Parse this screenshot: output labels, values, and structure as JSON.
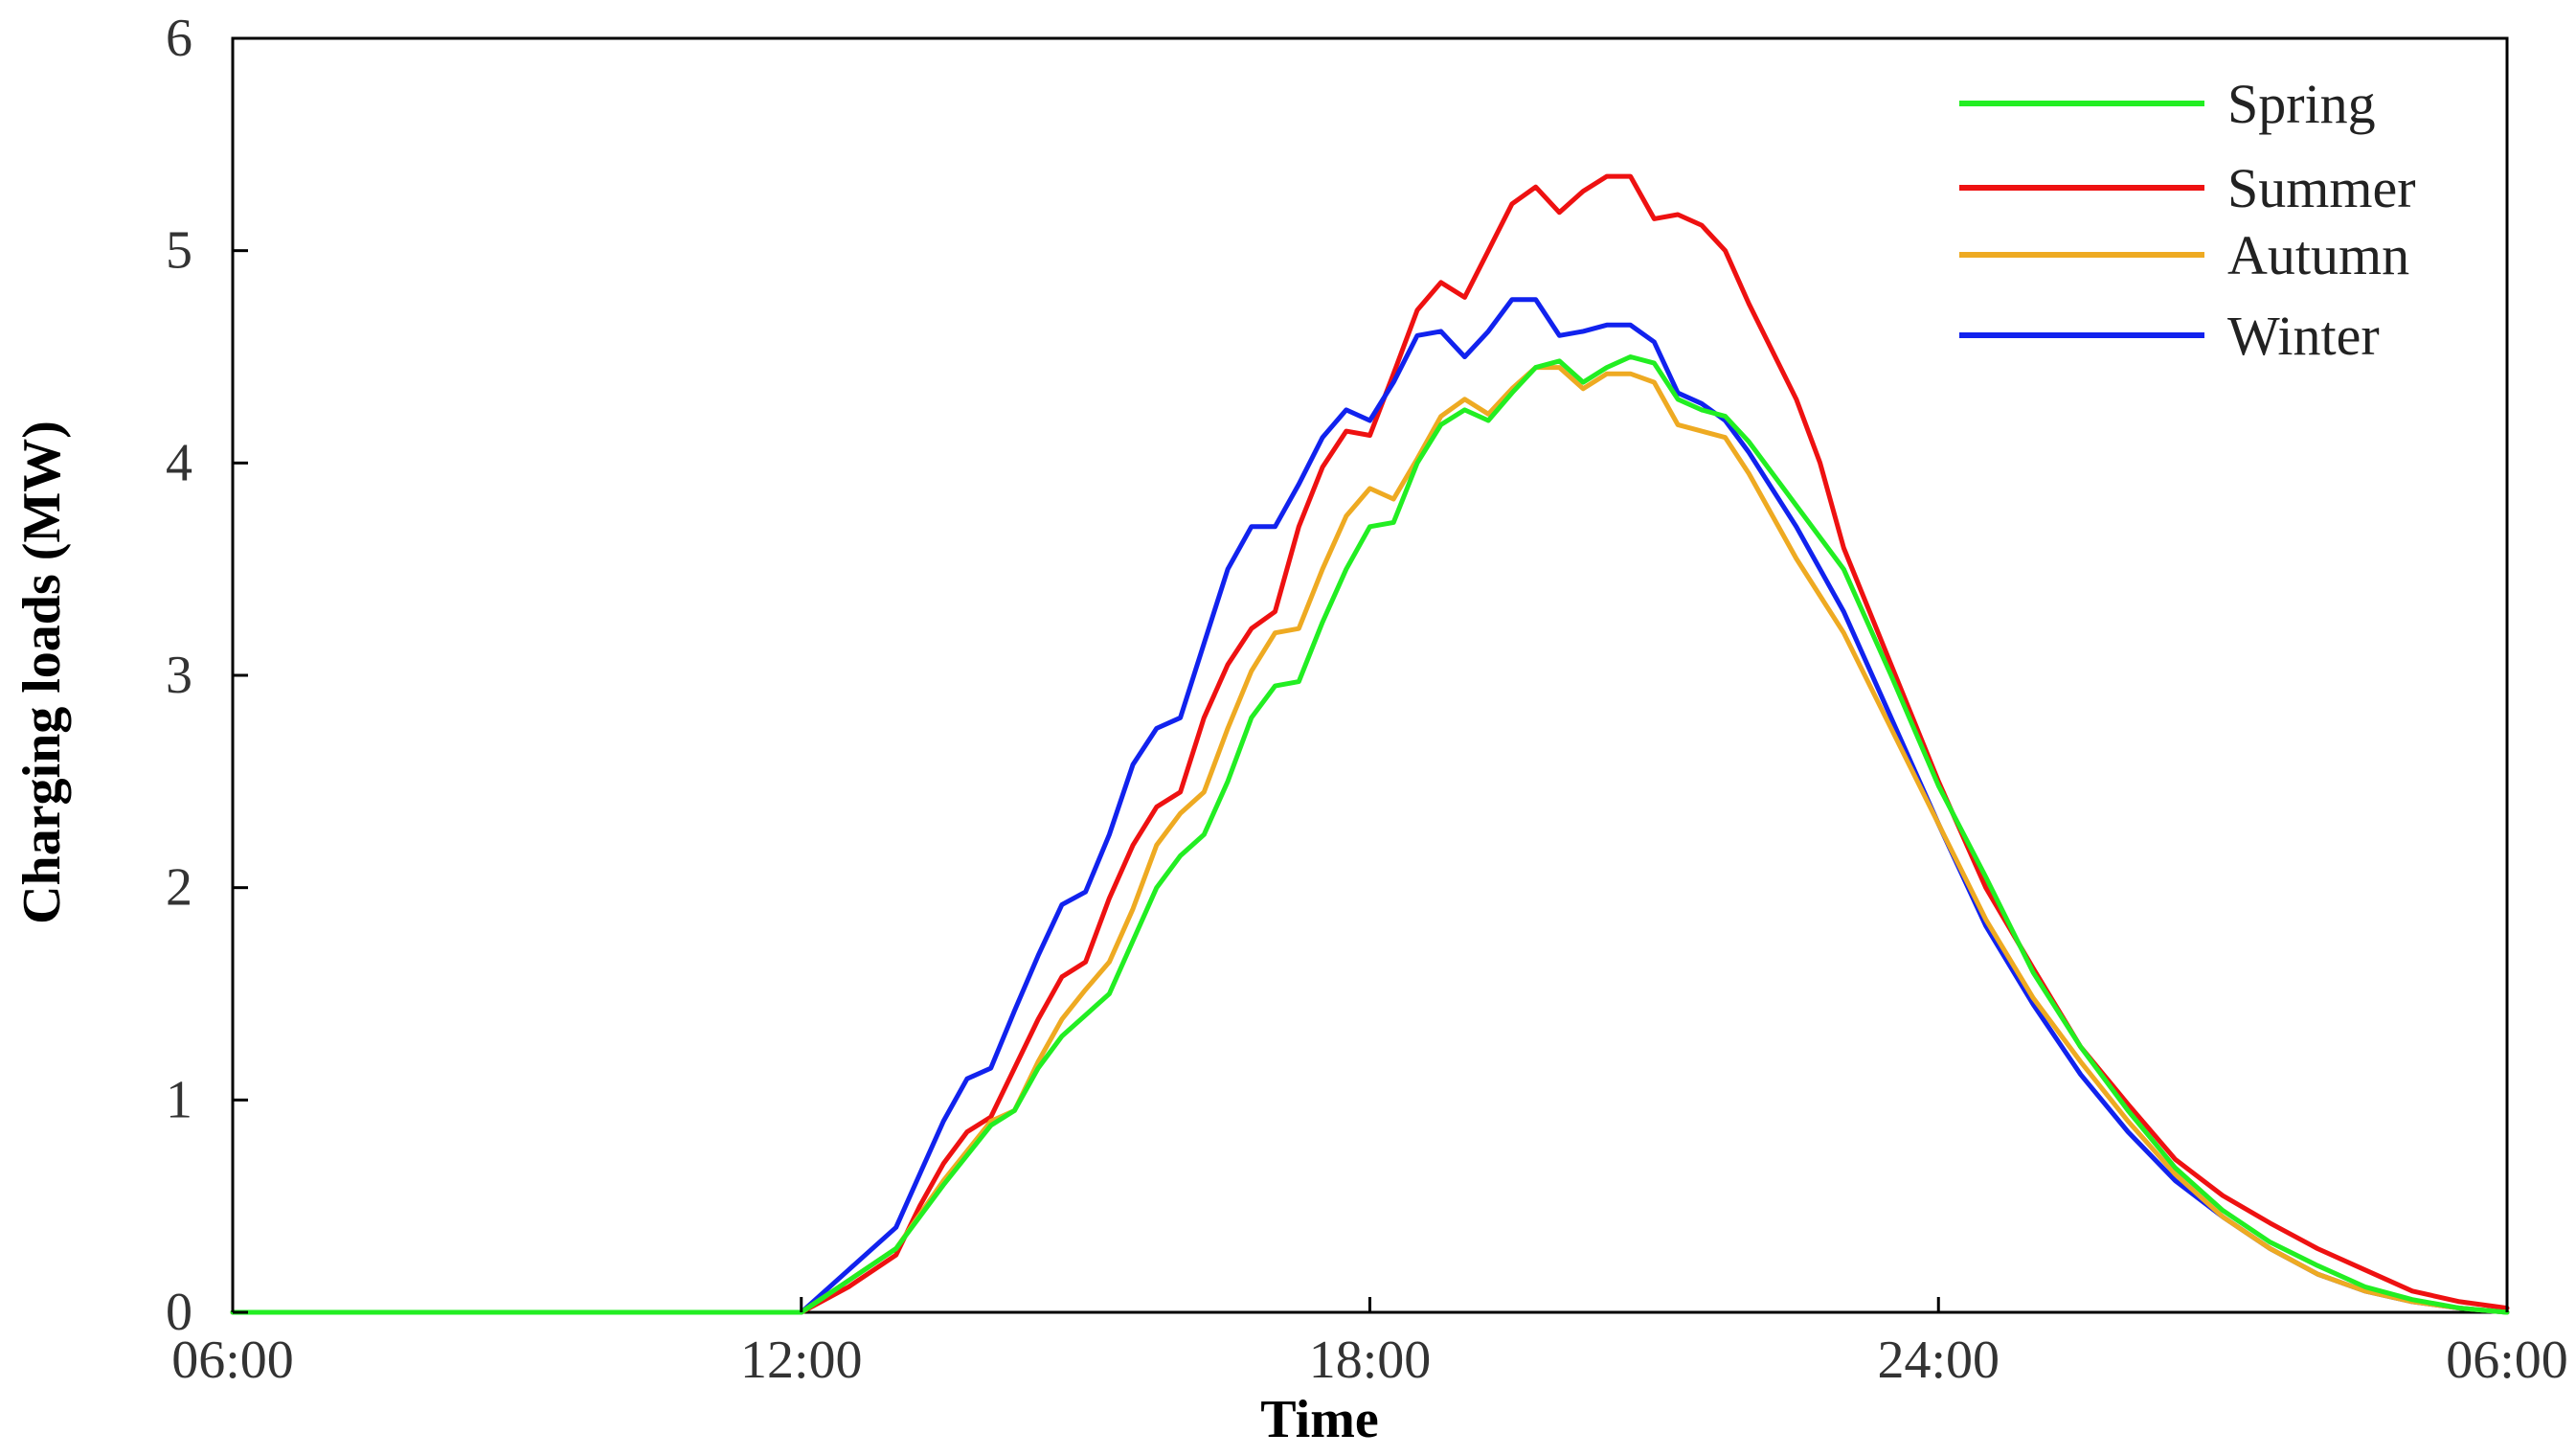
{
  "chart_data": {
    "type": "line",
    "title": "",
    "xlabel": "Time",
    "ylabel": "Charging loads (MW)",
    "xlim": [
      0,
      24
    ],
    "ylim": [
      0,
      6
    ],
    "grid": false,
    "legend_position": "top-right",
    "x_ticks": [
      {
        "value": 0,
        "label": "06:00"
      },
      {
        "value": 6,
        "label": "12:00"
      },
      {
        "value": 12,
        "label": "18:00"
      },
      {
        "value": 18,
        "label": "24:00"
      },
      {
        "value": 24,
        "label": "06:00"
      }
    ],
    "y_ticks": [
      {
        "value": 0,
        "label": "0"
      },
      {
        "value": 1,
        "label": "1"
      },
      {
        "value": 2,
        "label": "2"
      },
      {
        "value": 3,
        "label": "3"
      },
      {
        "value": 4,
        "label": "4"
      },
      {
        "value": 5,
        "label": "5"
      },
      {
        "value": 6,
        "label": "6"
      }
    ],
    "series": [
      {
        "name": "Spring",
        "color": "#22ee22",
        "points": [
          [
            0,
            0
          ],
          [
            6,
            0
          ],
          [
            6.5,
            0.15
          ],
          [
            7,
            0.3
          ],
          [
            7.5,
            0.6
          ],
          [
            8,
            0.88
          ],
          [
            8.25,
            0.95
          ],
          [
            8.5,
            1.15
          ],
          [
            8.75,
            1.3
          ],
          [
            9,
            1.4
          ],
          [
            9.25,
            1.5
          ],
          [
            9.5,
            1.75
          ],
          [
            9.75,
            2.0
          ],
          [
            10,
            2.15
          ],
          [
            10.25,
            2.25
          ],
          [
            10.5,
            2.5
          ],
          [
            10.75,
            2.8
          ],
          [
            11,
            2.95
          ],
          [
            11.25,
            2.97
          ],
          [
            11.5,
            3.25
          ],
          [
            11.75,
            3.5
          ],
          [
            12,
            3.7
          ],
          [
            12.25,
            3.72
          ],
          [
            12.5,
            4.0
          ],
          [
            12.75,
            4.18
          ],
          [
            13,
            4.25
          ],
          [
            13.25,
            4.2
          ],
          [
            13.5,
            4.33
          ],
          [
            13.75,
            4.45
          ],
          [
            14,
            4.48
          ],
          [
            14.25,
            4.38
          ],
          [
            14.5,
            4.45
          ],
          [
            14.75,
            4.5
          ],
          [
            15,
            4.47
          ],
          [
            15.25,
            4.3
          ],
          [
            15.5,
            4.25
          ],
          [
            15.75,
            4.22
          ],
          [
            16,
            4.1
          ],
          [
            16.5,
            3.8
          ],
          [
            17,
            3.5
          ],
          [
            17.5,
            3.0
          ],
          [
            18,
            2.48
          ],
          [
            18.5,
            2.05
          ],
          [
            19,
            1.6
          ],
          [
            19.5,
            1.25
          ],
          [
            20,
            0.95
          ],
          [
            20.5,
            0.68
          ],
          [
            21,
            0.48
          ],
          [
            21.5,
            0.33
          ],
          [
            22,
            0.22
          ],
          [
            22.5,
            0.12
          ],
          [
            23,
            0.06
          ],
          [
            23.5,
            0.02
          ],
          [
            24,
            0
          ]
        ]
      },
      {
        "name": "Summer",
        "color": "#ee1111",
        "points": [
          [
            0,
            0
          ],
          [
            6,
            0
          ],
          [
            6.5,
            0.12
          ],
          [
            7,
            0.27
          ],
          [
            7.25,
            0.5
          ],
          [
            7.5,
            0.7
          ],
          [
            7.75,
            0.85
          ],
          [
            8,
            0.92
          ],
          [
            8.25,
            1.15
          ],
          [
            8.5,
            1.38
          ],
          [
            8.75,
            1.58
          ],
          [
            9,
            1.65
          ],
          [
            9.25,
            1.95
          ],
          [
            9.5,
            2.2
          ],
          [
            9.75,
            2.38
          ],
          [
            10,
            2.45
          ],
          [
            10.25,
            2.8
          ],
          [
            10.5,
            3.05
          ],
          [
            10.75,
            3.22
          ],
          [
            11,
            3.3
          ],
          [
            11.25,
            3.7
          ],
          [
            11.5,
            3.98
          ],
          [
            11.75,
            4.15
          ],
          [
            12,
            4.13
          ],
          [
            12.25,
            4.42
          ],
          [
            12.5,
            4.72
          ],
          [
            12.75,
            4.85
          ],
          [
            13,
            4.78
          ],
          [
            13.25,
            5.0
          ],
          [
            13.5,
            5.22
          ],
          [
            13.75,
            5.3
          ],
          [
            14,
            5.18
          ],
          [
            14.25,
            5.28
          ],
          [
            14.5,
            5.35
          ],
          [
            14.75,
            5.35
          ],
          [
            15,
            5.15
          ],
          [
            15.25,
            5.17
          ],
          [
            15.5,
            5.12
          ],
          [
            15.75,
            5.0
          ],
          [
            16,
            4.75
          ],
          [
            16.5,
            4.3
          ],
          [
            16.75,
            4.0
          ],
          [
            17,
            3.6
          ],
          [
            17.5,
            3.05
          ],
          [
            18,
            2.5
          ],
          [
            18.5,
            2.0
          ],
          [
            19,
            1.62
          ],
          [
            19.5,
            1.25
          ],
          [
            20,
            0.98
          ],
          [
            20.5,
            0.72
          ],
          [
            21,
            0.55
          ],
          [
            21.5,
            0.42
          ],
          [
            22,
            0.3
          ],
          [
            22.5,
            0.2
          ],
          [
            23,
            0.1
          ],
          [
            23.5,
            0.05
          ],
          [
            24,
            0.02
          ]
        ]
      },
      {
        "name": "Autumn",
        "color": "#eeaa22",
        "points": [
          [
            0,
            0
          ],
          [
            6,
            0
          ],
          [
            6.5,
            0.15
          ],
          [
            7,
            0.3
          ],
          [
            7.5,
            0.62
          ],
          [
            8,
            0.9
          ],
          [
            8.25,
            0.95
          ],
          [
            8.5,
            1.18
          ],
          [
            8.75,
            1.38
          ],
          [
            9,
            1.52
          ],
          [
            9.25,
            1.65
          ],
          [
            9.5,
            1.9
          ],
          [
            9.75,
            2.2
          ],
          [
            10,
            2.35
          ],
          [
            10.25,
            2.45
          ],
          [
            10.5,
            2.75
          ],
          [
            10.75,
            3.02
          ],
          [
            11,
            3.2
          ],
          [
            11.25,
            3.22
          ],
          [
            11.5,
            3.5
          ],
          [
            11.75,
            3.75
          ],
          [
            12,
            3.88
          ],
          [
            12.25,
            3.83
          ],
          [
            12.5,
            4.02
          ],
          [
            12.75,
            4.22
          ],
          [
            13,
            4.3
          ],
          [
            13.25,
            4.23
          ],
          [
            13.5,
            4.35
          ],
          [
            13.75,
            4.45
          ],
          [
            14,
            4.45
          ],
          [
            14.25,
            4.35
          ],
          [
            14.5,
            4.42
          ],
          [
            14.75,
            4.42
          ],
          [
            15,
            4.38
          ],
          [
            15.25,
            4.18
          ],
          [
            15.5,
            4.15
          ],
          [
            15.75,
            4.12
          ],
          [
            16,
            3.95
          ],
          [
            16.5,
            3.55
          ],
          [
            17,
            3.2
          ],
          [
            17.5,
            2.75
          ],
          [
            18,
            2.3
          ],
          [
            18.5,
            1.85
          ],
          [
            19,
            1.48
          ],
          [
            19.5,
            1.18
          ],
          [
            20,
            0.9
          ],
          [
            20.5,
            0.65
          ],
          [
            21,
            0.45
          ],
          [
            21.5,
            0.3
          ],
          [
            22,
            0.18
          ],
          [
            22.5,
            0.1
          ],
          [
            23,
            0.05
          ],
          [
            23.5,
            0.02
          ],
          [
            24,
            0
          ]
        ]
      },
      {
        "name": "Winter",
        "color": "#1122ee",
        "points": [
          [
            0,
            0
          ],
          [
            6,
            0
          ],
          [
            6.5,
            0.2
          ],
          [
            7,
            0.4
          ],
          [
            7.25,
            0.65
          ],
          [
            7.5,
            0.9
          ],
          [
            7.75,
            1.1
          ],
          [
            8,
            1.15
          ],
          [
            8.25,
            1.42
          ],
          [
            8.5,
            1.68
          ],
          [
            8.75,
            1.92
          ],
          [
            9,
            1.98
          ],
          [
            9.25,
            2.25
          ],
          [
            9.5,
            2.58
          ],
          [
            9.75,
            2.75
          ],
          [
            10,
            2.8
          ],
          [
            10.25,
            3.15
          ],
          [
            10.5,
            3.5
          ],
          [
            10.75,
            3.7
          ],
          [
            11,
            3.7
          ],
          [
            11.25,
            3.9
          ],
          [
            11.5,
            4.12
          ],
          [
            11.75,
            4.25
          ],
          [
            12,
            4.2
          ],
          [
            12.25,
            4.38
          ],
          [
            12.5,
            4.6
          ],
          [
            12.75,
            4.62
          ],
          [
            13,
            4.5
          ],
          [
            13.25,
            4.62
          ],
          [
            13.5,
            4.77
          ],
          [
            13.75,
            4.77
          ],
          [
            14,
            4.6
          ],
          [
            14.25,
            4.62
          ],
          [
            14.5,
            4.65
          ],
          [
            14.75,
            4.65
          ],
          [
            15,
            4.57
          ],
          [
            15.25,
            4.33
          ],
          [
            15.5,
            4.28
          ],
          [
            15.75,
            4.2
          ],
          [
            16,
            4.05
          ],
          [
            16.5,
            3.7
          ],
          [
            17,
            3.3
          ],
          [
            17.5,
            2.8
          ],
          [
            18,
            2.3
          ],
          [
            18.5,
            1.82
          ],
          [
            19,
            1.45
          ],
          [
            19.5,
            1.12
          ],
          [
            20,
            0.85
          ],
          [
            20.5,
            0.62
          ],
          [
            21,
            0.45
          ],
          [
            21.5,
            0.3
          ],
          [
            22,
            0.18
          ],
          [
            22.5,
            0.1
          ],
          [
            23,
            0.05
          ],
          [
            23.5,
            0.02
          ],
          [
            24,
            0
          ]
        ]
      }
    ]
  }
}
